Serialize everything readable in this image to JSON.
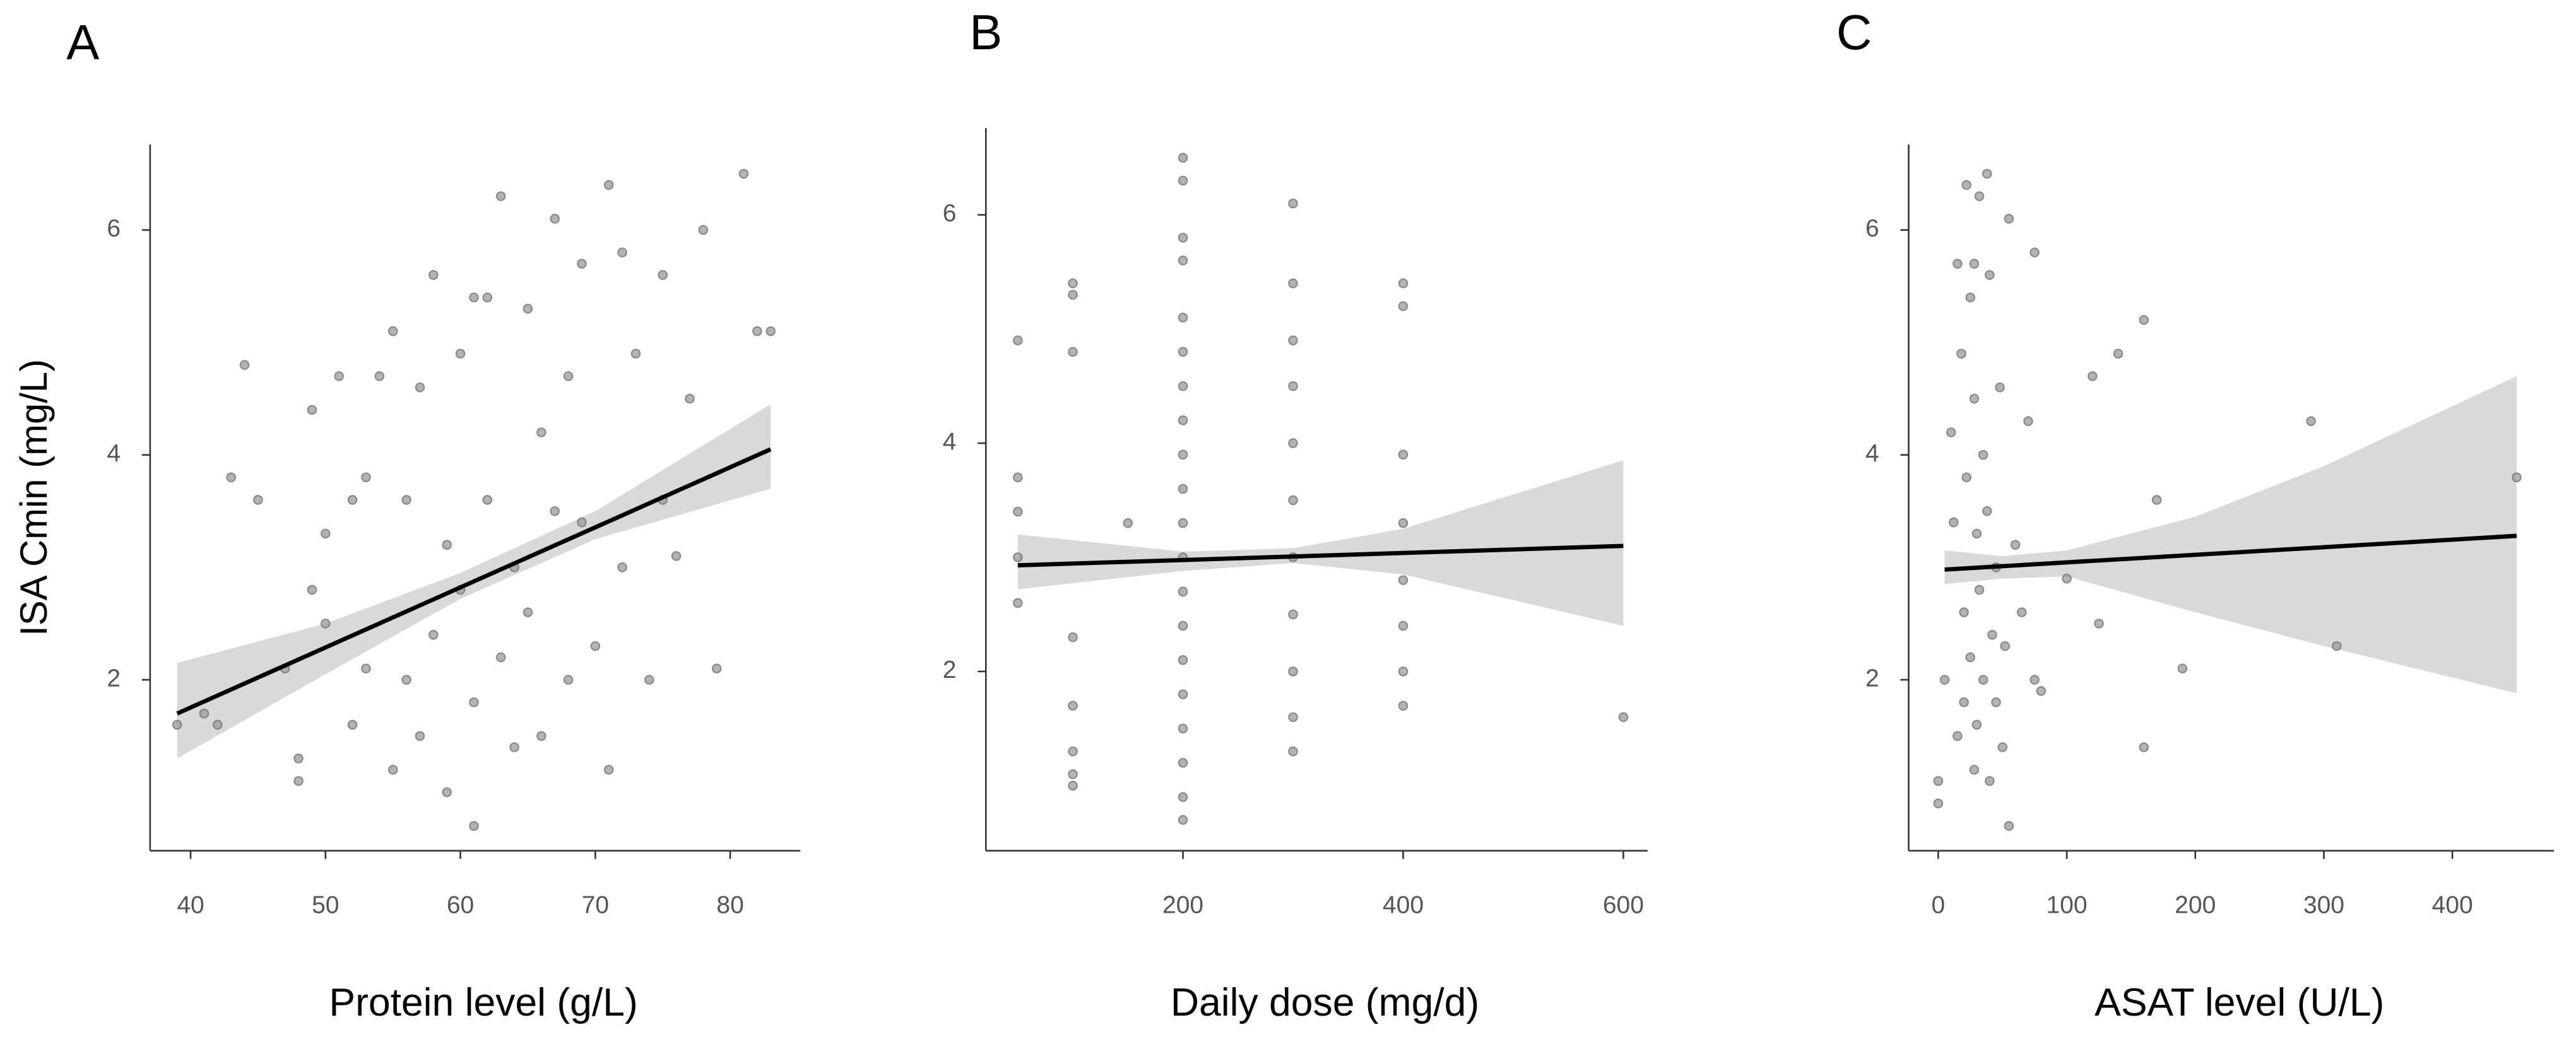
{
  "chart_data": [
    {
      "type": "scatter",
      "title": "A",
      "x_label": "Protein level (g/L)",
      "y_label": "ISA Cmin (mg/L)",
      "xlim": [
        37,
        85.2
      ],
      "ylim": [
        0.48,
        6.76
      ],
      "xticks": [
        40,
        50,
        60,
        70,
        80
      ],
      "yticks": [
        2,
        4,
        6
      ],
      "series": [
        {
          "color": "#9a9a9a",
          "x": [
            39,
            41,
            42,
            43,
            44,
            45,
            47,
            48,
            48,
            49,
            49,
            50,
            50,
            51,
            52,
            52,
            53,
            53,
            54,
            55,
            55,
            56,
            56,
            57,
            57,
            58,
            58,
            59,
            59,
            60,
            60,
            61,
            61,
            61,
            62,
            62,
            63,
            63,
            64,
            64,
            65,
            65,
            66,
            66,
            67,
            67,
            68,
            68,
            69,
            69,
            70,
            71,
            71,
            72,
            72,
            73,
            74,
            75,
            75,
            76,
            77,
            78,
            79,
            81,
            82,
            83
          ],
          "values": [
            1.6,
            1.7,
            1.6,
            3.8,
            4.8,
            3.6,
            2.1,
            1.1,
            1.3,
            4.4,
            2.8,
            2.5,
            3.3,
            4.7,
            3.6,
            1.6,
            3.8,
            2.1,
            4.7,
            5.1,
            1.2,
            3.6,
            2.0,
            4.6,
            1.5,
            5.6,
            2.4,
            3.2,
            1.0,
            4.9,
            2.8,
            0.7,
            5.4,
            1.8,
            3.6,
            5.4,
            6.3,
            2.2,
            3.0,
            1.4,
            5.3,
            2.6,
            4.2,
            1.5,
            6.1,
            3.5,
            4.7,
            2.0,
            5.7,
            3.4,
            2.3,
            6.4,
            1.2,
            5.8,
            3.0,
            4.9,
            2.0,
            5.6,
            3.6,
            3.1,
            4.5,
            6.0,
            2.1,
            6.5,
            5.1,
            5.1
          ]
        }
      ],
      "fit": {
        "color": "#000000",
        "x": [
          39,
          83
        ],
        "values": [
          1.7,
          4.05
        ]
      },
      "band": {
        "color": "#d9d9d9",
        "x": [
          39,
          50,
          60,
          70,
          83
        ],
        "lower": [
          1.3,
          2.05,
          2.72,
          3.25,
          3.7
        ],
        "upper": [
          2.15,
          2.5,
          2.95,
          3.5,
          4.45
        ]
      }
    },
    {
      "type": "scatter",
      "title": "B",
      "x_label": "Daily dose (mg/d)",
      "xlim": [
        21,
        622
      ],
      "ylim": [
        0.43,
        6.76
      ],
      "xticks": [
        200,
        400,
        600
      ],
      "yticks": [
        2,
        4,
        6
      ],
      "series": [
        {
          "color": "#9a9a9a",
          "x": [
            50,
            50,
            50,
            50,
            50,
            100,
            100,
            100,
            100,
            100,
            100,
            100,
            100,
            150,
            200,
            200,
            200,
            200,
            200,
            200,
            200,
            200,
            200,
            200,
            200,
            200,
            200,
            200,
            200,
            200,
            200,
            200,
            200,
            200,
            300,
            300,
            300,
            300,
            300,
            300,
            300,
            300,
            300,
            300,
            300,
            400,
            400,
            400,
            400,
            400,
            400,
            400,
            400,
            600
          ],
          "values": [
            4.9,
            3.7,
            3.4,
            3.0,
            2.6,
            5.4,
            5.3,
            4.8,
            2.3,
            1.7,
            1.3,
            1.1,
            1.0,
            3.3,
            6.5,
            6.3,
            5.8,
            5.6,
            5.1,
            4.8,
            4.5,
            4.2,
            3.9,
            3.6,
            3.3,
            3.0,
            2.7,
            2.4,
            2.1,
            1.8,
            1.5,
            1.2,
            0.9,
            0.7,
            6.1,
            5.4,
            4.9,
            4.5,
            4.0,
            3.5,
            3.0,
            2.5,
            2.0,
            1.6,
            1.3,
            5.4,
            5.2,
            3.9,
            3.3,
            2.8,
            2.4,
            2.0,
            1.7,
            1.6
          ]
        }
      ],
      "fit": {
        "color": "#000000",
        "x": [
          50,
          600
        ],
        "values": [
          2.93,
          3.1
        ]
      },
      "band": {
        "color": "#d9d9d9",
        "x": [
          50,
          200,
          300,
          400,
          600
        ],
        "lower": [
          2.72,
          2.88,
          2.95,
          2.85,
          2.4
        ],
        "upper": [
          3.2,
          3.05,
          3.08,
          3.25,
          3.85
        ]
      }
    },
    {
      "type": "scatter",
      "title": "C",
      "x_label": "ASAT level (U/L)",
      "xlim": [
        -23,
        479
      ],
      "ylim": [
        0.48,
        6.76
      ],
      "xticks": [
        0,
        100,
        200,
        300,
        400
      ],
      "yticks": [
        2,
        4,
        6
      ],
      "series": [
        {
          "color": "#9a9a9a",
          "x": [
            0,
            0,
            5,
            10,
            12,
            15,
            15,
            18,
            20,
            20,
            22,
            22,
            25,
            25,
            28,
            28,
            28,
            30,
            30,
            32,
            32,
            35,
            35,
            38,
            38,
            40,
            40,
            42,
            45,
            45,
            48,
            50,
            52,
            55,
            55,
            60,
            65,
            70,
            75,
            75,
            80,
            100,
            120,
            125,
            140,
            160,
            160,
            170,
            190,
            290,
            310,
            450
          ],
          "values": [
            1.1,
            0.9,
            2.0,
            4.2,
            3.4,
            5.7,
            1.5,
            4.9,
            2.6,
            1.8,
            6.4,
            3.8,
            5.4,
            2.2,
            5.7,
            4.5,
            1.2,
            3.3,
            1.6,
            6.3,
            2.8,
            4.0,
            2.0,
            6.5,
            3.5,
            5.6,
            1.1,
            2.4,
            3.0,
            1.8,
            4.6,
            1.4,
            2.3,
            0.7,
            6.1,
            3.2,
            2.6,
            4.3,
            5.8,
            2.0,
            1.9,
            2.9,
            4.7,
            2.5,
            4.9,
            5.2,
            1.4,
            3.6,
            2.1,
            4.3,
            2.3,
            3.8
          ]
        }
      ],
      "fit": {
        "color": "#000000",
        "x": [
          5,
          450
        ],
        "values": [
          2.98,
          3.28
        ]
      },
      "band": {
        "color": "#d9d9d9",
        "x": [
          5,
          50,
          100,
          200,
          300,
          450
        ],
        "lower": [
          2.85,
          2.9,
          2.92,
          2.6,
          2.3,
          1.88
        ],
        "upper": [
          3.15,
          3.1,
          3.15,
          3.45,
          3.9,
          4.7
        ]
      }
    }
  ]
}
